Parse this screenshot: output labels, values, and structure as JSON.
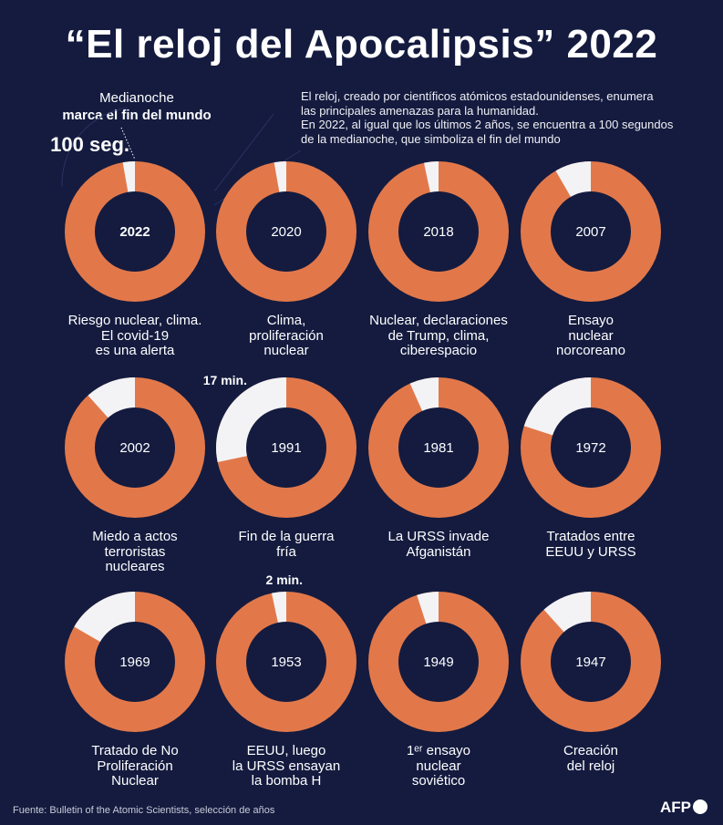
{
  "title": "“El reloj del Apocalipsis” 2022",
  "midnight_label": {
    "line1": "Medianoche",
    "line2": "marca el fin del mundo"
  },
  "intro": {
    "line1": "El reloj, creado por científicos atómicos estadounidenses, enumera",
    "line2": "las principales amenazas para la humanidad.",
    "line3": "En 2022, al igual que los últimos 2 años, se encuentra a 100 segundos",
    "line4": "de la medianoche, que simboliza el fin del mundo"
  },
  "colors": {
    "background": "#141b3f",
    "ring": "#e2784a",
    "gap": "#f3f3f5",
    "hole": "#141b3f"
  },
  "chart_data": {
    "type": "pie",
    "title": "“El reloj del Apocalipsis” 2022",
    "unit": "minutes to midnight",
    "annotations": [
      {
        "year": "2022",
        "text": "100 seg."
      },
      {
        "year": "1991",
        "text": "17 min."
      },
      {
        "year": "1953",
        "text": "2 min."
      }
    ],
    "clocks": [
      {
        "year": "2022",
        "minutes_to_midnight": 1.667,
        "bold": true,
        "caption": [
          "Riesgo nuclear, clima.",
          "El covid-19",
          "es una alerta"
        ]
      },
      {
        "year": "2020",
        "minutes_to_midnight": 1.667,
        "caption": [
          "Clima,",
          "proliferación",
          "nuclear"
        ]
      },
      {
        "year": "2018",
        "minutes_to_midnight": 2,
        "caption": [
          "Nuclear, declaraciones",
          "de Trump, clima,",
          "ciberespacio"
        ]
      },
      {
        "year": "2007",
        "minutes_to_midnight": 5,
        "caption": [
          "Ensayo",
          "nuclear",
          "norcoreano"
        ]
      },
      {
        "year": "2002",
        "minutes_to_midnight": 7,
        "caption": [
          "Miedo a actos",
          "terroristas",
          "nucleares"
        ]
      },
      {
        "year": "1991",
        "minutes_to_midnight": 17,
        "caption": [
          "Fin de la guerra",
          "fría"
        ]
      },
      {
        "year": "1981",
        "minutes_to_midnight": 4,
        "caption": [
          "La URSS invade",
          "Afganistán"
        ]
      },
      {
        "year": "1972",
        "minutes_to_midnight": 12,
        "caption": [
          "Tratados entre",
          "EEUU y URSS"
        ]
      },
      {
        "year": "1969",
        "minutes_to_midnight": 10,
        "caption": [
          "Tratado de No",
          "Proliferación",
          "Nuclear"
        ]
      },
      {
        "year": "1953",
        "minutes_to_midnight": 2,
        "caption": [
          "EEUU, luego",
          "la URSS ensayan",
          "la bomba H"
        ]
      },
      {
        "year": "1949",
        "minutes_to_midnight": 3,
        "caption": [
          "1ᵉʳ ensayo",
          "nuclear",
          "soviético"
        ]
      },
      {
        "year": "1947",
        "minutes_to_midnight": 7,
        "caption": [
          "Creación",
          "del reloj"
        ]
      }
    ]
  },
  "source": "Fuente: Bulletin of the Atomic Scientists, selección de años",
  "logo_text": "AFP"
}
